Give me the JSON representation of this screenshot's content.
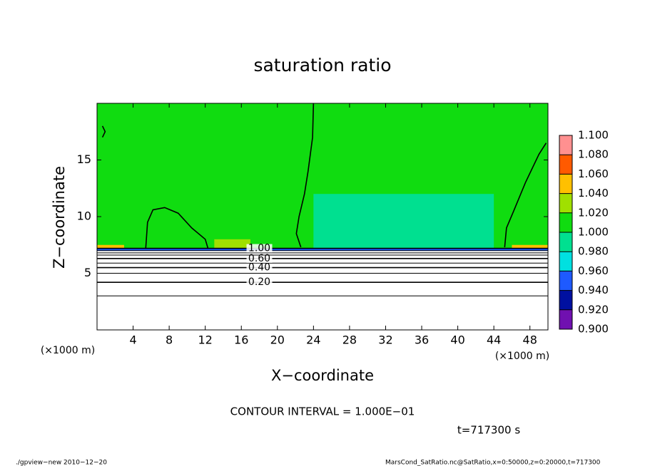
{
  "chart_data": {
    "type": "contour",
    "title": "saturation ratio",
    "xlabel": "X−coordinate",
    "ylabel": "Z−coordinate",
    "x_unit": "(×1000 m)",
    "y_unit": "(×1000 m)",
    "xlim": [
      0,
      50
    ],
    "ylim": [
      0,
      20
    ],
    "xticks": [
      4,
      8,
      12,
      16,
      20,
      24,
      28,
      32,
      36,
      40,
      44,
      48
    ],
    "yticks": [
      5,
      10,
      15
    ],
    "colorbar": {
      "bounds": [
        {
          "value": 0.9,
          "label": "0.900"
        },
        {
          "value": 0.92,
          "label": "0.920"
        },
        {
          "value": 0.94,
          "label": "0.940"
        },
        {
          "value": 0.96,
          "label": "0.960"
        },
        {
          "value": 0.98,
          "label": "0.980"
        },
        {
          "value": 1.0,
          "label": "1.000"
        },
        {
          "value": 1.02,
          "label": "1.020"
        },
        {
          "value": 1.04,
          "label": "1.040"
        },
        {
          "value": 1.06,
          "label": "1.060"
        },
        {
          "value": 1.08,
          "label": "1.080"
        },
        {
          "value": 1.1,
          "label": "1.100"
        }
      ],
      "colors": [
        "#7010b0",
        "#0010a0",
        "#1e5aff",
        "#00e0e0",
        "#00e090",
        "#10dc10",
        "#a0e000",
        "#ffc000",
        "#ff5a00",
        "#ff9090"
      ]
    },
    "patches": [
      {
        "x": [
          0,
          50
        ],
        "z": [
          7.2,
          20
        ],
        "value": 1.0
      },
      {
        "x": [
          24,
          44
        ],
        "z": [
          7.2,
          12
        ],
        "value": 0.99
      },
      {
        "x": [
          13,
          17
        ],
        "z": [
          7.2,
          8
        ],
        "value": 1.025
      },
      {
        "x": [
          0,
          3
        ],
        "z": [
          7.2,
          7.5
        ],
        "value": 1.05
      },
      {
        "x": [
          46,
          50
        ],
        "z": [
          7.2,
          7.5
        ],
        "value": 1.05
      },
      {
        "x": [
          0,
          50
        ],
        "z": [
          7.0,
          7.2
        ],
        "value": 0.95
      }
    ],
    "contours": [
      {
        "level": 0.1,
        "z": 3.0
      },
      {
        "level": 0.2,
        "z": 4.2,
        "label": "0.20"
      },
      {
        "level": 0.3,
        "z": 5.0
      },
      {
        "level": 0.4,
        "z": 5.5,
        "label": "0.40"
      },
      {
        "level": 0.5,
        "z": 5.9
      },
      {
        "level": 0.6,
        "z": 6.3,
        "label": "0.60"
      },
      {
        "level": 0.7,
        "z": 6.6
      },
      {
        "level": 0.8,
        "z": 6.8
      },
      {
        "level": 0.9,
        "z": 7.0
      },
      {
        "level": 1.0,
        "z": 7.2,
        "label": "1.00"
      }
    ],
    "contour_lines": [
      {
        "x": [
          5.4,
          5.6,
          6.2,
          7.5,
          9,
          10.5,
          12,
          12.3
        ],
        "z": [
          7.2,
          9.5,
          10.6,
          10.8,
          10.3,
          9,
          8,
          7.2
        ]
      },
      {
        "x": [
          24,
          23.9,
          23.4,
          23,
          22.4,
          22.1,
          22.6
        ],
        "z": [
          20,
          17,
          14,
          12,
          10,
          8.5,
          7.3
        ]
      },
      {
        "x": [
          49.8,
          49,
          47.5,
          46.2,
          45.4,
          45.2
        ],
        "z": [
          16.5,
          15.5,
          13,
          10.5,
          9,
          7.3
        ]
      },
      {
        "x": [
          0.6,
          0.9,
          0.6
        ],
        "z": [
          18,
          17.5,
          17
        ]
      }
    ],
    "contour_interval": "CONTOUR INTERVAL = 1.000E−01",
    "time": "t=717300 s",
    "footer_left": "./gpview−new   2010−12−20",
    "footer_right": "MarsCond_SatRatio.nc@SatRatio,x=0:50000,z=0:20000,t=717300"
  }
}
